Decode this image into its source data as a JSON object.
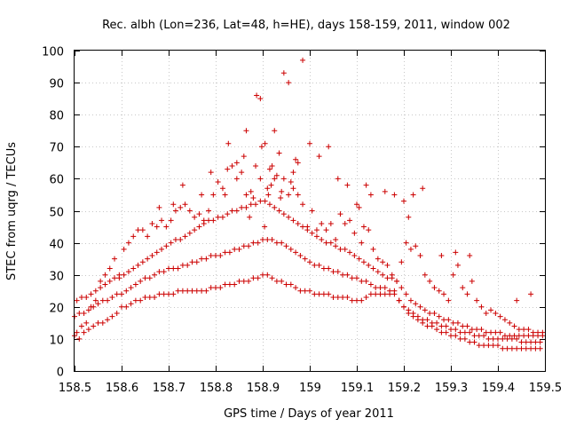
{
  "chart_data": {
    "type": "scatter",
    "title": "Rec. albh (Lon=236, Lat=48, h=HE), days 158-159, 2011, window 002",
    "xlabel": "GPS time / Days of year 2011",
    "ylabel": "STEC from uqrg / TECUs",
    "xlim": [
      158.5,
      159.5
    ],
    "ylim": [
      0,
      100
    ],
    "xticks": [
      158.5,
      158.6,
      158.7,
      158.8,
      158.9,
      159,
      159.1,
      159.2,
      159.3,
      159.4,
      159.5
    ],
    "xtick_labels": [
      "158.5",
      "158.6",
      "158.7",
      "158.8",
      "158.9",
      "159",
      "159.1",
      "159.2",
      "159.3",
      "159.4",
      "159.5"
    ],
    "yticks": [
      0,
      10,
      20,
      30,
      40,
      50,
      60,
      70,
      80,
      90,
      100
    ],
    "ytick_labels": [
      "0",
      "10",
      "20",
      "30",
      "40",
      "50",
      "60",
      "70",
      "80",
      "90",
      "100"
    ],
    "grid": true,
    "marker": "+",
    "color": "#cc0000",
    "series": [
      {
        "name": "STEC",
        "x": [
          158.5,
          158.51,
          158.52,
          158.53,
          158.54,
          158.55,
          158.56,
          158.57,
          158.58,
          158.59,
          158.6,
          158.61,
          158.62,
          158.63,
          158.64,
          158.65,
          158.66,
          158.67,
          158.68,
          158.69,
          158.7,
          158.71,
          158.72,
          158.73,
          158.74,
          158.75,
          158.76,
          158.77,
          158.78,
          158.79,
          158.8,
          158.81,
          158.82,
          158.83,
          158.84,
          158.85,
          158.86,
          158.87,
          158.88,
          158.89,
          158.9,
          158.91,
          158.92,
          158.93,
          158.94,
          158.95,
          158.96,
          158.97,
          158.98,
          158.99,
          159.0,
          159.01,
          159.02,
          159.03,
          159.04,
          159.05,
          159.06,
          159.07,
          159.08,
          159.09,
          159.1,
          159.11,
          159.12,
          159.13,
          159.14,
          159.15,
          159.16,
          159.17,
          159.18,
          159.19,
          159.2,
          159.21,
          159.22,
          159.23,
          159.24,
          159.25,
          159.26,
          159.27,
          159.28,
          159.29,
          159.3,
          159.31,
          159.32,
          159.33,
          159.34,
          159.35,
          159.36,
          159.37,
          159.38,
          159.39,
          159.4,
          159.41,
          159.42,
          159.43,
          159.44,
          159.45,
          159.46,
          159.47,
          159.48,
          159.49,
          158.5,
          158.51,
          158.52,
          158.53,
          158.54,
          158.55,
          158.56,
          158.57,
          158.58,
          158.59,
          158.6,
          158.61,
          158.62,
          158.63,
          158.64,
          158.65,
          158.66,
          158.67,
          158.68,
          158.69,
          158.7,
          158.71,
          158.72,
          158.73,
          158.74,
          158.75,
          158.76,
          158.77,
          158.78,
          158.79,
          158.8,
          158.81,
          158.82,
          158.83,
          158.84,
          158.85,
          158.86,
          158.87,
          158.88,
          158.89,
          158.9,
          158.91,
          158.92,
          158.93,
          158.94,
          158.95,
          158.96,
          158.97,
          158.98,
          158.99,
          159.0,
          159.01,
          159.02,
          159.03,
          159.04,
          159.05,
          159.06,
          159.07,
          159.08,
          159.09,
          159.1,
          159.11,
          159.12,
          159.13,
          159.14,
          159.15,
          159.16,
          159.17,
          159.18,
          159.19,
          159.2,
          159.21,
          159.22,
          159.23,
          159.24,
          159.25,
          159.26,
          159.27,
          159.28,
          159.29,
          159.3,
          159.31,
          159.32,
          159.33,
          159.34,
          159.35,
          159.36,
          159.37,
          159.38,
          159.39,
          159.4,
          159.41,
          159.42,
          159.43,
          159.44,
          159.45,
          159.46,
          159.47,
          159.48,
          159.49,
          158.505,
          158.515,
          158.525,
          158.535,
          158.545,
          158.555,
          158.565,
          158.575,
          158.585,
          158.595,
          158.605,
          158.615,
          158.625,
          158.635,
          158.645,
          158.655,
          158.665,
          158.675,
          158.685,
          158.695,
          158.705,
          158.715,
          158.725,
          158.735,
          158.745,
          158.755,
          158.765,
          158.775,
          158.785,
          158.795,
          158.805,
          158.815,
          158.825,
          158.835,
          158.845,
          158.855,
          158.865,
          158.875,
          158.885,
          158.895,
          158.905,
          158.915,
          158.925,
          158.935,
          158.945,
          158.955,
          158.965,
          158.975,
          158.985,
          158.995,
          159.005,
          159.015,
          159.025,
          159.035,
          159.045,
          159.055,
          159.065,
          159.075,
          159.085,
          159.095,
          159.105,
          159.115,
          159.125,
          159.135,
          159.145,
          159.155,
          159.165,
          159.175,
          159.185,
          159.195,
          159.205,
          159.215,
          159.225,
          159.235,
          159.245,
          159.255,
          159.265,
          159.275,
          159.285,
          159.295,
          159.305,
          159.315,
          159.325,
          159.335,
          159.345,
          159.355,
          159.365,
          159.375,
          159.385,
          159.395,
          159.405,
          159.415,
          159.425,
          159.435,
          159.445,
          159.455,
          159.465,
          159.475,
          159.485,
          159.495,
          158.505,
          158.515,
          158.525,
          158.535,
          158.545,
          158.555,
          158.565,
          158.575,
          158.585,
          158.595,
          158.605,
          158.615,
          158.625,
          158.635,
          158.645,
          158.655,
          158.665,
          158.675,
          158.685,
          158.695,
          158.705,
          158.715,
          158.725,
          158.735,
          158.745,
          158.755,
          158.765,
          158.775,
          158.785,
          158.795,
          158.805,
          158.815,
          158.825,
          158.835,
          158.845,
          158.855,
          158.865,
          158.875,
          158.885,
          158.895,
          158.905,
          158.915,
          158.925,
          158.935,
          158.945,
          158.955,
          158.965,
          158.975,
          158.985,
          158.995,
          159.005,
          159.015,
          159.025,
          159.035,
          159.045,
          159.055,
          159.065,
          159.075,
          159.085,
          159.095,
          159.105,
          159.115,
          159.125,
          159.135,
          159.145,
          159.155,
          159.165,
          159.175,
          159.185,
          159.195,
          159.205,
          159.215,
          159.225,
          159.235,
          159.245,
          159.255,
          159.265,
          159.275,
          159.285,
          159.295,
          159.305,
          159.315,
          159.325,
          159.335,
          159.345,
          159.355,
          159.365,
          159.375,
          159.385,
          159.395,
          159.405,
          159.415,
          159.425,
          159.435,
          159.445,
          159.455,
          159.465,
          159.475,
          159.485,
          159.495,
          158.827,
          158.845,
          158.865,
          158.872,
          158.887,
          158.895,
          158.898,
          158.904,
          158.912,
          158.918,
          158.925,
          158.938,
          158.945,
          158.955,
          158.965,
          158.975,
          158.985,
          158.92,
          158.93,
          158.86,
          158.88,
          158.91,
          158.94,
          158.96,
          158.97,
          159.0,
          159.02,
          159.04,
          159.06,
          159.08,
          159.1,
          159.12,
          159.13,
          158.82,
          158.79,
          158.77,
          158.73,
          158.71,
          158.68,
          159.21,
          159.22,
          159.24,
          159.2,
          159.18,
          159.16,
          159.11,
          159.28,
          159.31,
          159.34,
          159.44,
          159.47
        ],
        "y": [
          11,
          10,
          12,
          13,
          14,
          15,
          15,
          16,
          17,
          18,
          20,
          20,
          21,
          22,
          22,
          23,
          23,
          23,
          24,
          24,
          24,
          24,
          25,
          25,
          25,
          25,
          25,
          25,
          25,
          26,
          26,
          26,
          27,
          27,
          27,
          28,
          28,
          28,
          29,
          29,
          30,
          30,
          29,
          28,
          28,
          27,
          27,
          26,
          25,
          25,
          25,
          24,
          24,
          24,
          24,
          23,
          23,
          23,
          23,
          22,
          22,
          22,
          23,
          24,
          24,
          24,
          24,
          24,
          24,
          22,
          20,
          18,
          17,
          16,
          15,
          14,
          14,
          13,
          12,
          12,
          11,
          11,
          10,
          10,
          9,
          9,
          8,
          8,
          8,
          8,
          8,
          7,
          7,
          7,
          7,
          7,
          7,
          7,
          7,
          7,
          17,
          18,
          18,
          19,
          20,
          21,
          22,
          22,
          23,
          24,
          24,
          25,
          26,
          27,
          28,
          29,
          29,
          30,
          31,
          31,
          32,
          32,
          32,
          33,
          33,
          34,
          34,
          35,
          35,
          36,
          36,
          36,
          37,
          37,
          38,
          38,
          39,
          39,
          40,
          40,
          41,
          41,
          41,
          40,
          40,
          39,
          38,
          37,
          36,
          35,
          34,
          33,
          33,
          32,
          32,
          31,
          31,
          30,
          30,
          29,
          29,
          28,
          28,
          27,
          26,
          26,
          26,
          25,
          25,
          22,
          20,
          19,
          18,
          17,
          16,
          16,
          15,
          15,
          14,
          14,
          13,
          13,
          12,
          12,
          12,
          11,
          11,
          11,
          10,
          10,
          10,
          10,
          10,
          10,
          10,
          9,
          9,
          9,
          9,
          9,
          22,
          23,
          23,
          24,
          25,
          26,
          27,
          28,
          29,
          29,
          30,
          31,
          32,
          33,
          34,
          35,
          36,
          37,
          38,
          39,
          40,
          41,
          41,
          42,
          43,
          44,
          45,
          46,
          47,
          47,
          48,
          48,
          49,
          50,
          50,
          51,
          51,
          52,
          52,
          53,
          53,
          52,
          51,
          50,
          49,
          48,
          47,
          46,
          45,
          44,
          43,
          42,
          41,
          40,
          40,
          39,
          38,
          38,
          37,
          36,
          35,
          34,
          33,
          32,
          31,
          30,
          29,
          29,
          28,
          26,
          24,
          22,
          21,
          20,
          19,
          18,
          18,
          17,
          16,
          16,
          15,
          15,
          14,
          14,
          13,
          13,
          13,
          12,
          12,
          12,
          12,
          11,
          11,
          11,
          11,
          11,
          11,
          11,
          11,
          11,
          12,
          14,
          15,
          20,
          22,
          28,
          30,
          32,
          35,
          30,
          38,
          40,
          42,
          44,
          44,
          42,
          46,
          45,
          47,
          45,
          47,
          50,
          51,
          52,
          50,
          48,
          49,
          47,
          50,
          55,
          59,
          57,
          63,
          64,
          60,
          62,
          75,
          56,
          64,
          60,
          71,
          63,
          60,
          68,
          60,
          55,
          62,
          65,
          52,
          45,
          50,
          44,
          46,
          44,
          46,
          41,
          49,
          46,
          47,
          43,
          51,
          45,
          44,
          38,
          35,
          34,
          33,
          30,
          28,
          34,
          40,
          38,
          39,
          36,
          30,
          28,
          26,
          25,
          24,
          22,
          30,
          33,
          26,
          24,
          28,
          22,
          20,
          18,
          19,
          18,
          17,
          16,
          15,
          14,
          13,
          13,
          13,
          12,
          12,
          12,
          71,
          65,
          55,
          48,
          86,
          85,
          70,
          45,
          55,
          58,
          75,
          54,
          93,
          90,
          57,
          55,
          97,
          64,
          61,
          67,
          54,
          57,
          56,
          59,
          66,
          71,
          67,
          70,
          60,
          58,
          52,
          58,
          55,
          55,
          62,
          55,
          58,
          52,
          51,
          48,
          55,
          57,
          53,
          55,
          56,
          40,
          36,
          37,
          36,
          22,
          24
        ]
      }
    ]
  }
}
